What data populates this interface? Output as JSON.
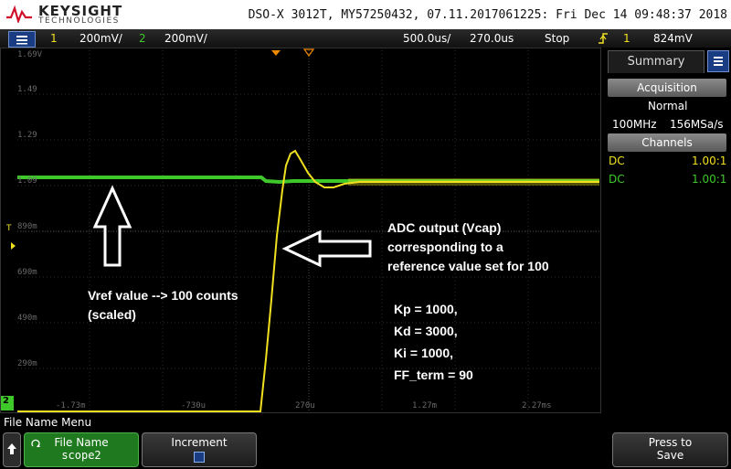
{
  "header": {
    "brand": "KEYSIGHT",
    "brand_sub": "TECHNOLOGIES",
    "title": "DSO-X 3012T, MY57250432, 07.11.2017061225: Fri Dec 14 09:48:37 2018"
  },
  "status": {
    "ch1_num": "1",
    "ch1_scale": "200mV/",
    "ch2_num": "2",
    "ch2_scale": "200mV/",
    "timebase": "500.0us/",
    "delay": "270.0us",
    "run_state": "Stop",
    "trigger_source": "1",
    "trigger_level": "824mV"
  },
  "screen": {
    "y_labels": [
      "1.69V",
      "1.49",
      "1.29",
      "1.09",
      "890m",
      "690m",
      "490m",
      "290m"
    ],
    "x_labels": [
      "-1.73m",
      "-730u",
      "270u",
      "1.27m",
      "2.27ms"
    ],
    "ch2_marker": "2",
    "trigger_marker": "T",
    "annotations": {
      "adc_1": "ADC output (Vcap)",
      "adc_2": "corresponding to a",
      "adc_3": "reference value set for 100",
      "vref_1": "Vref value --> 100 counts",
      "vref_2": "(scaled)",
      "kp": "Kp = 1000,",
      "kd": "Kd = 3000,",
      "ki": "Ki = 1000,",
      "ff": "FF_term = 90"
    }
  },
  "panel": {
    "tab": "Summary",
    "acquisition_header": "Acquisition",
    "acq_mode": "Normal",
    "bandwidth": "100MHz",
    "sample_rate": "156MSa/s",
    "channels_header": "Channels",
    "ch1_coupling": "DC",
    "ch1_probe": "1.00:1",
    "ch2_coupling": "DC",
    "ch2_probe": "1.00:1"
  },
  "bottom": {
    "menu_label": "File Name Menu",
    "file_name_label": "File Name",
    "file_name_value": "scope2",
    "increment_label": "Increment",
    "press_to_save_1": "Press to",
    "press_to_save_2": "Save"
  },
  "colors": {
    "ch1": "#f0e020",
    "ch2": "#3ec82a",
    "accent": "#1a3c82"
  }
}
